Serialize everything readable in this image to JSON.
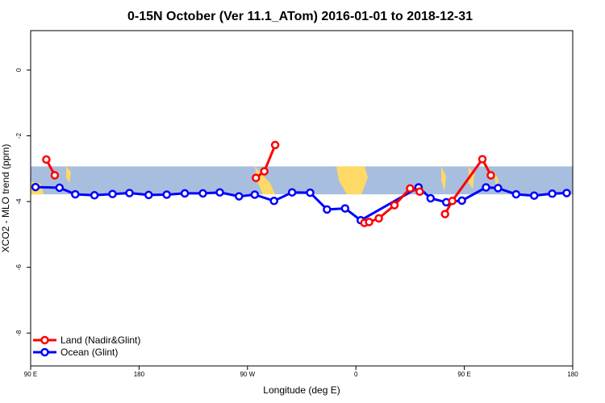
{
  "chart_data": {
    "type": "line",
    "title": "0-15N October (Ver 11.1_ATom)   2016-01-01 to 2018-12-31",
    "xlabel": "Longitude (deg E)",
    "ylabel": "XCO2 - MLO trend (ppm)",
    "xlim": [
      90,
      540
    ],
    "ylim": [
      -9,
      1.2
    ],
    "x_ticks": [
      {
        "value": 90,
        "label": "90 E"
      },
      {
        "value": 180,
        "label": "180"
      },
      {
        "value": 270,
        "label": "90 W"
      },
      {
        "value": 360,
        "label": "0"
      },
      {
        "value": 450,
        "label": "90 E"
      },
      {
        "value": 540,
        "label": "180"
      }
    ],
    "y_ticks": [
      {
        "value": 0,
        "label": "0"
      },
      {
        "value": -2,
        "label": "-2"
      },
      {
        "value": -4,
        "label": "-4"
      },
      {
        "value": -6,
        "label": "-6"
      },
      {
        "value": -8,
        "label": "-8"
      }
    ],
    "grid": false,
    "legend_position": "bottom-left",
    "background_map": {
      "latitude_band": "0-15N",
      "ocean_color": "#a8bedf",
      "land_color": "#ffd966",
      "y_range": [
        -3.78,
        -2.93
      ]
    },
    "series": [
      {
        "name": "Land (Nadir&Glint)",
        "color": "#ff0000",
        "segments": [
          [
            [
              103,
              -2.72
            ],
            [
              110,
              -3.2
            ]
          ],
          [
            [
              277,
              -3.28
            ],
            [
              284,
              -3.08
            ],
            [
              293,
              -2.28
            ]
          ],
          [
            [
              367,
              -4.65
            ],
            [
              371,
              -4.62
            ],
            [
              379,
              -4.51
            ],
            [
              392,
              -4.11
            ],
            [
              405,
              -3.6
            ],
            [
              413,
              -3.7
            ]
          ],
          [
            [
              434,
              -4.38
            ],
            [
              440,
              -3.98
            ],
            [
              465,
              -2.71
            ],
            [
              472,
              -3.2
            ]
          ]
        ]
      },
      {
        "name": "Ocean (Glint)",
        "color": "#0000ff",
        "segments": [
          [
            [
              94,
              -3.56
            ],
            [
              114,
              -3.58
            ],
            [
              127,
              -3.78
            ],
            [
              143,
              -3.81
            ],
            [
              158,
              -3.77
            ],
            [
              172,
              -3.74
            ],
            [
              188,
              -3.8
            ],
            [
              203,
              -3.79
            ],
            [
              218,
              -3.75
            ],
            [
              233,
              -3.75
            ],
            [
              247,
              -3.72
            ],
            [
              263,
              -3.84
            ],
            [
              276,
              -3.79
            ],
            [
              292,
              -3.98
            ],
            [
              307,
              -3.72
            ],
            [
              322,
              -3.73
            ],
            [
              336,
              -4.24
            ],
            [
              351,
              -4.21
            ],
            [
              364,
              -4.57
            ],
            [
              412,
              -3.57
            ],
            [
              422,
              -3.9
            ],
            [
              435,
              -4.02
            ],
            [
              448,
              -3.97
            ],
            [
              468,
              -3.57
            ],
            [
              478,
              -3.59
            ],
            [
              493,
              -3.78
            ],
            [
              508,
              -3.82
            ],
            [
              523,
              -3.76
            ],
            [
              535,
              -3.74
            ]
          ]
        ]
      }
    ]
  }
}
